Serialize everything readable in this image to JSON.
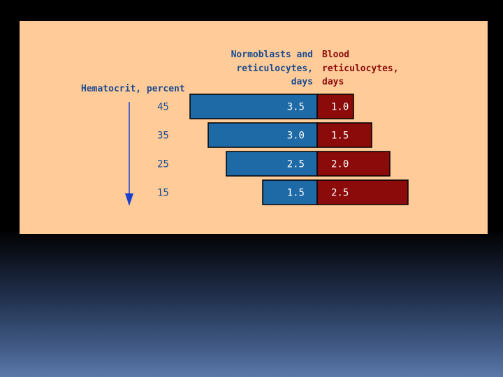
{
  "colors": {
    "panel_bg": "#ffcc99",
    "normoblast_bar": "#1e6aa6",
    "blood_bar": "#8b0a0a",
    "header_normoblast_text": "#1a4a8f",
    "header_blood_text": "#8b0a0a",
    "axis_arrow": "#1a3fcc",
    "bar_outline": "#000000"
  },
  "chart_data": {
    "type": "bar",
    "orientation": "horizontal-diverging",
    "ylabel": "Hematocrit, percent",
    "categories": [
      "45",
      "35",
      "25",
      "15"
    ],
    "series": [
      {
        "name_lines": [
          "Normoblasts and",
          "reticulocytes,",
          "days"
        ],
        "values": [
          3.5,
          3.0,
          2.5,
          1.5
        ],
        "value_labels": [
          "3.5",
          "3.0",
          "2.5",
          "1.5"
        ]
      },
      {
        "name_lines": [
          "Blood",
          "reticulocytes,",
          "days"
        ],
        "values": [
          1.0,
          1.5,
          2.0,
          2.5
        ],
        "value_labels": [
          "1.0",
          "1.5",
          "2.0",
          "2.5"
        ]
      }
    ],
    "legend": "top",
    "grid": false
  }
}
